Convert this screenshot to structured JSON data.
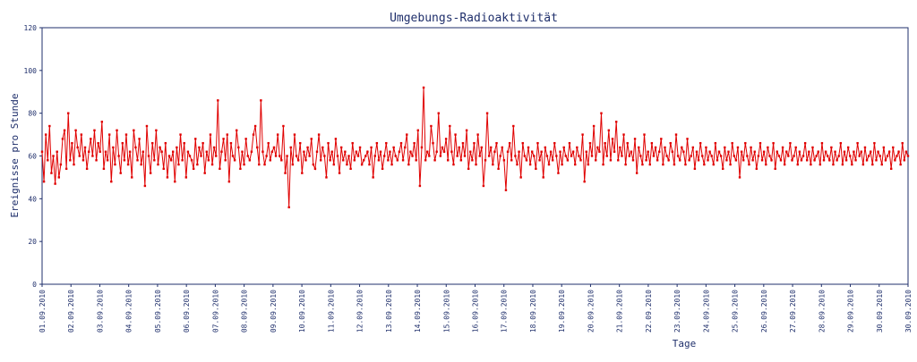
{
  "chart_data": {
    "type": "line",
    "title": "Umgebungs-Radioaktivität",
    "xlabel": "Tage",
    "ylabel": "Ereignisse pro Stunde",
    "ylim": [
      0,
      120
    ],
    "yticks": [
      0,
      20,
      40,
      60,
      80,
      100,
      120
    ],
    "ytick_labels": [
      "0",
      "20",
      "40",
      "60",
      "80",
      "100",
      "120"
    ],
    "xlim": [
      "01.09.2010",
      "30.09.2010"
    ],
    "xtick_labels": [
      "01.09.2010",
      "02.09.2010",
      "03.09.2010",
      "04.09.2010",
      "05.09.2010",
      "06.09.2010",
      "07.09.2010",
      "08.09.2010",
      "09.09.2010",
      "10.09.2010",
      "11.09.2010",
      "12.09.2010",
      "13.09.2010",
      "14.09.2010",
      "15.09.2010",
      "16.09.2010",
      "17.09.2010",
      "18.09.2010",
      "19.09.2010",
      "20.09.2010",
      "21.09.2010",
      "22.09.2010",
      "23.09.2010",
      "24.09.2010",
      "25.09.2010",
      "26.09.2010",
      "27.09.2010",
      "28.09.2010",
      "29.09.2010",
      "30.09.2010",
      "30.09.2010"
    ],
    "grid": false,
    "legend": "none",
    "series": [
      {
        "color": "#e00000",
        "values": [
          62,
          48,
          70,
          58,
          74,
          52,
          60,
          47,
          62,
          50,
          56,
          68,
          72,
          54,
          80,
          58,
          66,
          56,
          72,
          64,
          60,
          70,
          58,
          64,
          54,
          62,
          68,
          60,
          72,
          58,
          66,
          62,
          76,
          54,
          62,
          58,
          70,
          48,
          64,
          56,
          72,
          60,
          52,
          66,
          58,
          70,
          56,
          62,
          50,
          72,
          64,
          58,
          68,
          56,
          62,
          46,
          74,
          60,
          52,
          66,
          58,
          72,
          56,
          64,
          62,
          54,
          66,
          50,
          60,
          58,
          62,
          48,
          64,
          56,
          70,
          58,
          66,
          50,
          62,
          60,
          58,
          54,
          68,
          56,
          64,
          60,
          66,
          52,
          62,
          58,
          70,
          56,
          64,
          60,
          86,
          54,
          62,
          68,
          58,
          70,
          48,
          66,
          60,
          58,
          72,
          64,
          54,
          62,
          56,
          68,
          60,
          58,
          62,
          70,
          74,
          64,
          56,
          86,
          62,
          56,
          60,
          66,
          58,
          62,
          64,
          60,
          70,
          60,
          58,
          74,
          52,
          60,
          36,
          64,
          56,
          70,
          60,
          58,
          66,
          52,
          62,
          58,
          64,
          60,
          68,
          56,
          54,
          62,
          70,
          58,
          64,
          60,
          50,
          66,
          58,
          62,
          56,
          68,
          60,
          52,
          64,
          58,
          62,
          56,
          60,
          54,
          66,
          58,
          62,
          60,
          64,
          56,
          58,
          60,
          62,
          56,
          64,
          50,
          60,
          66,
          58,
          62,
          54,
          60,
          66,
          58,
          62,
          56,
          64,
          60,
          58,
          62,
          66,
          58,
          64,
          70,
          56,
          62,
          60,
          66,
          58,
          72,
          46,
          64,
          92,
          58,
          62,
          60,
          74,
          66,
          58,
          62,
          80,
          60,
          64,
          62,
          68,
          58,
          74,
          62,
          56,
          70,
          60,
          64,
          58,
          66,
          60,
          72,
          54,
          62,
          58,
          66,
          56,
          70,
          60,
          64,
          46,
          58,
          80,
          60,
          64,
          56,
          62,
          66,
          54,
          60,
          64,
          58,
          44,
          62,
          66,
          58,
          74,
          60,
          56,
          62,
          50,
          66,
          60,
          58,
          64,
          56,
          62,
          60,
          54,
          66,
          58,
          62,
          50,
          64,
          60,
          56,
          62,
          58,
          66,
          60,
          52,
          62,
          56,
          64,
          60,
          58,
          66,
          60,
          62,
          56,
          64,
          60,
          58,
          70,
          48,
          62,
          56,
          66,
          60,
          74,
          58,
          64,
          62,
          80,
          56,
          66,
          60,
          72,
          58,
          68,
          62,
          76,
          58,
          64,
          60,
          70,
          56,
          66,
          60,
          62,
          58,
          68,
          52,
          64,
          60,
          56,
          70,
          58,
          62,
          56,
          66,
          60,
          64,
          58,
          62,
          68,
          56,
          64,
          60,
          58,
          66,
          62,
          56,
          70,
          60,
          58,
          64,
          62,
          56,
          68,
          58,
          60,
          64,
          54,
          62,
          58,
          66,
          60,
          56,
          64,
          58,
          62,
          60,
          56,
          66,
          58,
          62,
          60,
          54,
          64,
          58,
          62,
          56,
          66,
          60,
          58,
          64,
          50,
          62,
          58,
          66,
          60,
          56,
          64,
          58,
          62,
          54,
          60,
          66,
          58,
          62,
          56,
          64,
          60,
          58,
          66,
          54,
          62,
          60,
          58,
          64,
          56,
          62,
          60,
          66,
          58,
          60,
          64,
          56,
          62,
          58,
          60,
          66,
          58,
          62,
          56,
          64,
          58,
          60,
          62,
          56,
          66,
          58,
          62,
          60,
          58,
          64,
          56,
          62,
          58,
          60,
          66,
          56,
          62,
          58,
          64,
          60,
          56,
          62,
          58,
          66,
          60,
          62,
          56,
          64,
          58,
          60,
          62,
          56,
          66,
          58,
          62,
          60,
          56,
          64,
          58,
          60,
          62,
          54,
          64,
          58,
          60,
          62,
          56,
          66,
          58,
          62,
          60
        ]
      }
    ]
  }
}
